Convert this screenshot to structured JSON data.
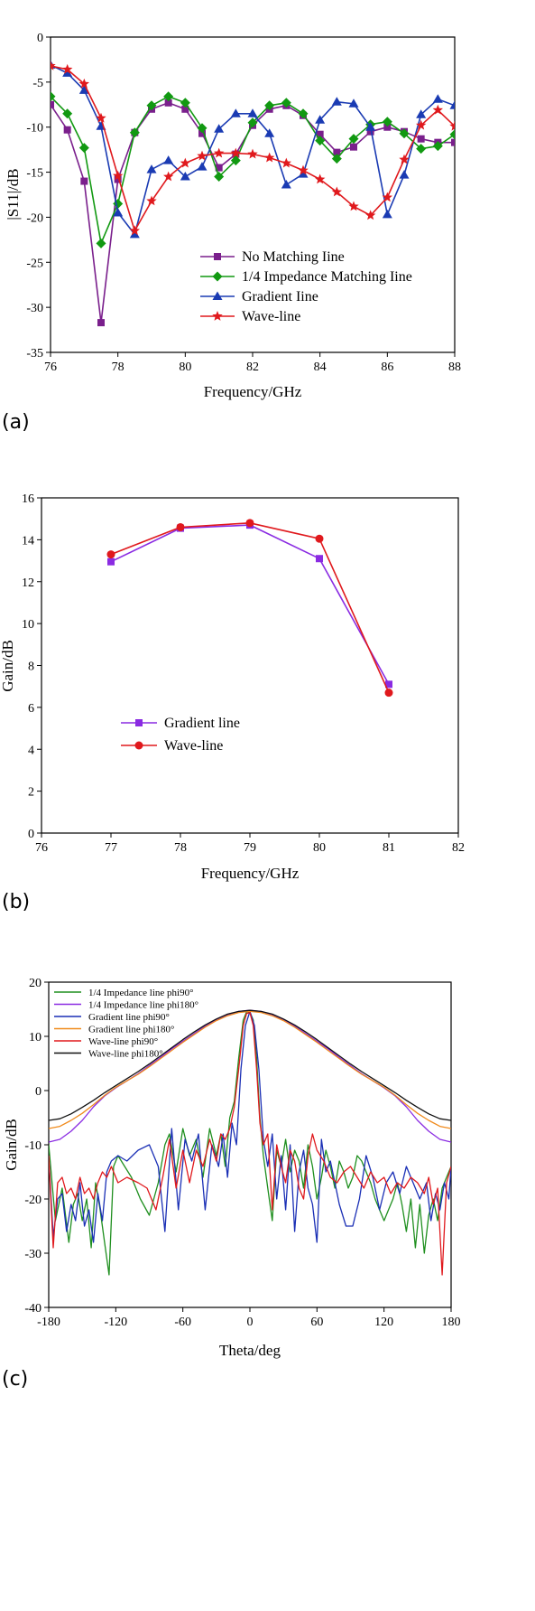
{
  "chart_data": [
    {
      "type": "line",
      "panel_label": "(a)",
      "xlabel": "Frequency/GHz",
      "ylabel": "|S11|/dB",
      "xlim": [
        76,
        88
      ],
      "ylim": [
        -35,
        0
      ],
      "xticks": [
        76,
        78,
        80,
        82,
        84,
        86,
        88
      ],
      "yticks": [
        0,
        -5,
        -10,
        -15,
        -20,
        -25,
        -30,
        -35
      ],
      "legend_position": "bottom-right",
      "series": [
        {
          "name": "No Matching Iine",
          "color": "#7a1f8c",
          "marker": "square",
          "x": [
            76,
            76.5,
            77,
            77.5,
            78,
            78.5,
            79,
            79.5,
            80,
            80.5,
            81,
            81.5,
            82,
            82.5,
            83,
            83.5,
            84,
            84.5,
            85,
            85.5,
            86,
            86.5,
            87,
            87.5,
            88
          ],
          "y": [
            -7.5,
            -10.3,
            -16.0,
            -31.7,
            -15.8,
            -10.6,
            -8.0,
            -7.3,
            -8.0,
            -10.7,
            -14.5,
            -13.0,
            -9.8,
            -8.0,
            -7.6,
            -8.7,
            -10.8,
            -12.8,
            -12.2,
            -10.5,
            -10.0,
            -10.5,
            -11.3,
            -11.7,
            -11.7
          ]
        },
        {
          "name": "1/4 Impedance Matching Iine",
          "color": "#119911",
          "marker": "diamond",
          "x": [
            76,
            76.5,
            77,
            77.5,
            78,
            78.5,
            79,
            79.5,
            80,
            80.5,
            81,
            81.5,
            82,
            82.5,
            83,
            83.5,
            84,
            84.5,
            85,
            85.5,
            86,
            86.5,
            87,
            87.5,
            88
          ],
          "y": [
            -6.6,
            -8.5,
            -12.3,
            -22.9,
            -18.5,
            -10.6,
            -7.6,
            -6.6,
            -7.3,
            -10.1,
            -15.5,
            -13.7,
            -9.5,
            -7.6,
            -7.3,
            -8.5,
            -11.5,
            -13.5,
            -11.3,
            -9.7,
            -9.4,
            -10.7,
            -12.4,
            -12.1,
            -10.8
          ]
        },
        {
          "name": "Gradient Iine",
          "color": "#1a3bb3",
          "marker": "triangle",
          "x": [
            76,
            76.5,
            77,
            77.5,
            78,
            78.5,
            79,
            79.5,
            80,
            80.5,
            81,
            81.5,
            82,
            82.5,
            83,
            83.5,
            84,
            84.5,
            85,
            85.5,
            86,
            86.5,
            87,
            87.5,
            88
          ],
          "y": [
            -3.1,
            -4.0,
            -5.9,
            -9.9,
            -19.5,
            -21.9,
            -14.7,
            -13.7,
            -15.5,
            -14.4,
            -10.2,
            -8.5,
            -8.5,
            -10.7,
            -16.4,
            -15.2,
            -9.2,
            -7.2,
            -7.4,
            -10.0,
            -19.7,
            -15.3,
            -8.6,
            -6.9,
            -7.6
          ]
        },
        {
          "name": "Wave-line",
          "color": "#e0191d",
          "marker": "star",
          "x": [
            76,
            76.5,
            77,
            77.5,
            78,
            78.5,
            79,
            79.5,
            80,
            80.5,
            81,
            81.5,
            82,
            82.5,
            83,
            83.5,
            84,
            84.5,
            85,
            85.5,
            86,
            86.5,
            87,
            87.5,
            88
          ],
          "y": [
            -3.2,
            -3.6,
            -5.2,
            -9.0,
            -15.4,
            -21.5,
            -18.2,
            -15.5,
            -14.0,
            -13.2,
            -12.9,
            -12.9,
            -13.0,
            -13.4,
            -14.0,
            -14.8,
            -15.8,
            -17.2,
            -18.8,
            -19.8,
            -17.8,
            -13.6,
            -9.8,
            -8.1,
            -9.9
          ]
        }
      ]
    },
    {
      "type": "line",
      "panel_label": "(b)",
      "xlabel": "Frequency/GHz",
      "ylabel": "Gain/dB",
      "xlim": [
        76,
        82
      ],
      "ylim": [
        0,
        16
      ],
      "xticks": [
        76,
        77,
        78,
        79,
        80,
        81,
        82
      ],
      "yticks": [
        0,
        2,
        4,
        6,
        8,
        10,
        12,
        14,
        16
      ],
      "legend_position": "bottom-left",
      "series": [
        {
          "name": "Gradient line",
          "color": "#8a2be2",
          "marker": "square",
          "x": [
            77,
            78,
            79,
            80,
            81
          ],
          "y": [
            12.95,
            14.55,
            14.7,
            13.1,
            7.1
          ]
        },
        {
          "name": "Wave-line",
          "color": "#e0191d",
          "marker": "circle",
          "x": [
            77,
            78,
            79,
            80,
            81
          ],
          "y": [
            13.3,
            14.6,
            14.8,
            14.05,
            6.7
          ]
        }
      ]
    },
    {
      "type": "line",
      "panel_label": "(c)",
      "xlabel": "Theta/deg",
      "ylabel": "Gain/dB",
      "xlim": [
        -180,
        180
      ],
      "ylim": [
        -40,
        20
      ],
      "xticks": [
        -180,
        -120,
        -60,
        0,
        60,
        120,
        180
      ],
      "yticks": [
        20,
        10,
        0,
        -10,
        -20,
        -30,
        -40
      ],
      "legend_position": "top-left",
      "series": [
        {
          "name": "1/4 Impedance line phi90°",
          "color": "#1f8f1f",
          "kind": "sidelobe",
          "x": [
            -180,
            -174,
            -168,
            -162,
            -158,
            -154,
            -150,
            -146,
            -142,
            -138,
            -134,
            -130,
            -126,
            -122,
            -118,
            -112,
            -106,
            -98,
            -90,
            -82,
            -76,
            -72,
            -66,
            -60,
            -54,
            -48,
            -42,
            -36,
            -30,
            -26,
            -22,
            -18,
            -14,
            -10,
            -6,
            -3,
            0,
            3,
            6,
            9,
            12,
            16,
            20,
            24,
            28,
            32,
            36,
            40,
            44,
            48,
            52,
            56,
            60,
            64,
            68,
            72,
            76,
            80,
            84,
            88,
            92,
            96,
            100,
            104,
            108,
            112,
            116,
            120,
            124,
            128,
            132,
            136,
            140,
            144,
            148,
            152,
            156,
            160,
            164,
            168,
            172,
            176,
            180
          ],
          "y": [
            -10,
            -24,
            -18,
            -28,
            -21,
            -19,
            -24,
            -20,
            -29,
            -17,
            -22,
            -28,
            -34,
            -14,
            -12,
            -14,
            -16,
            -20,
            -23,
            -17,
            -10,
            -8,
            -15,
            -7,
            -12,
            -9,
            -16,
            -7,
            -12,
            -8,
            -14,
            -5,
            -2,
            6,
            13,
            14.5,
            14.5,
            13,
            6,
            -5,
            -12,
            -18,
            -24,
            -11,
            -14,
            -9,
            -15,
            -11,
            -13,
            -18,
            -10,
            -14,
            -20,
            -16,
            -11,
            -14,
            -18,
            -13,
            -15,
            -18,
            -16,
            -12,
            -13,
            -15,
            -17,
            -20,
            -22,
            -24,
            -22,
            -20,
            -17,
            -21,
            -26,
            -20,
            -29,
            -21,
            -30,
            -23,
            -20,
            -24,
            -18,
            -16,
            -14
          ]
        },
        {
          "name": "1/4 Impedance line phi180°",
          "color": "#8a2be2",
          "kind": "main",
          "x": [
            -180,
            -170,
            -160,
            -150,
            -140,
            -130,
            -120,
            -110,
            -100,
            -90,
            -80,
            -70,
            -60,
            -50,
            -40,
            -30,
            -20,
            -10,
            0,
            10,
            20,
            30,
            40,
            50,
            60,
            70,
            80,
            90,
            100,
            110,
            120,
            130,
            140,
            150,
            160,
            170,
            180
          ],
          "y": [
            -9.5,
            -9,
            -7.5,
            -5.5,
            -3,
            -1,
            0.5,
            1.8,
            3.1,
            4.6,
            6.1,
            7.7,
            9.1,
            10.5,
            11.9,
            13.1,
            14.0,
            14.6,
            14.8,
            14.6,
            14.0,
            13.1,
            11.9,
            10.5,
            9.1,
            7.7,
            6.1,
            4.6,
            3.1,
            1.8,
            0.5,
            -1,
            -3,
            -5.5,
            -7.5,
            -9,
            -9.5
          ]
        },
        {
          "name": "Gradient line phi90°",
          "color": "#1a2fb5",
          "kind": "sidelobe",
          "x": [
            -180,
            -176,
            -172,
            -168,
            -164,
            -160,
            -156,
            -152,
            -148,
            -144,
            -140,
            -136,
            -132,
            -128,
            -124,
            -118,
            -110,
            -100,
            -90,
            -82,
            -76,
            -70,
            -64,
            -58,
            -52,
            -46,
            -40,
            -34,
            -28,
            -24,
            -20,
            -16,
            -12,
            -8,
            -4,
            0,
            4,
            8,
            12,
            16,
            20,
            24,
            28,
            32,
            36,
            40,
            44,
            48,
            52,
            56,
            60,
            64,
            68,
            72,
            76,
            80,
            86,
            92,
            98,
            104,
            110,
            116,
            122,
            128,
            134,
            140,
            146,
            152,
            158,
            162,
            166,
            170,
            174,
            178,
            180
          ],
          "y": [
            -12,
            -27,
            -20,
            -19,
            -26,
            -21,
            -24,
            -17,
            -25,
            -22,
            -28,
            -19,
            -24,
            -15,
            -13,
            -12,
            -13,
            -11,
            -10,
            -14,
            -26,
            -7,
            -22,
            -9,
            -13,
            -8,
            -22,
            -10,
            -14,
            -8,
            -16,
            -6,
            -10,
            4,
            12,
            14.6,
            12,
            4,
            -9,
            -14,
            -8,
            -20,
            -12,
            -22,
            -10,
            -26,
            -15,
            -11,
            -18,
            -21,
            -28,
            -9,
            -15,
            -13,
            -17,
            -21,
            -25,
            -25,
            -20,
            -12,
            -16,
            -22,
            -17,
            -15,
            -19,
            -14,
            -17,
            -20,
            -17,
            -24,
            -19,
            -22,
            -17,
            -20,
            -14
          ]
        },
        {
          "name": "Gradient line phi180°",
          "color": "#f08a1c",
          "kind": "main",
          "x": [
            -180,
            -170,
            -160,
            -150,
            -140,
            -130,
            -120,
            -110,
            -100,
            -90,
            -80,
            -70,
            -60,
            -50,
            -40,
            -30,
            -20,
            -10,
            0,
            10,
            20,
            30,
            40,
            50,
            60,
            70,
            80,
            90,
            100,
            110,
            120,
            130,
            140,
            150,
            160,
            170,
            180
          ],
          "y": [
            -7,
            -6.6,
            -5.5,
            -4.2,
            -2.6,
            -0.9,
            0.6,
            1.8,
            3.0,
            4.4,
            5.9,
            7.4,
            8.9,
            10.3,
            11.7,
            12.9,
            13.8,
            14.4,
            14.6,
            14.4,
            13.8,
            12.9,
            11.7,
            10.3,
            8.9,
            7.4,
            5.9,
            4.4,
            3.0,
            1.8,
            0.6,
            -0.9,
            -2.6,
            -4.2,
            -5.5,
            -6.6,
            -7
          ]
        },
        {
          "name": "Wave-line phi90°",
          "color": "#e0191d",
          "kind": "sidelobe",
          "x": [
            -180,
            -176,
            -172,
            -168,
            -164,
            -160,
            -156,
            -152,
            -148,
            -144,
            -140,
            -136,
            -132,
            -128,
            -124,
            -118,
            -110,
            -100,
            -92,
            -84,
            -78,
            -72,
            -66,
            -60,
            -54,
            -48,
            -42,
            -36,
            -30,
            -26,
            -22,
            -18,
            -14,
            -10,
            -6,
            -3,
            0,
            3,
            6,
            9,
            12,
            16,
            20,
            24,
            28,
            32,
            36,
            40,
            44,
            48,
            52,
            56,
            60,
            66,
            72,
            78,
            84,
            90,
            96,
            102,
            108,
            114,
            120,
            126,
            132,
            138,
            144,
            150,
            156,
            160,
            164,
            168,
            172,
            176,
            180
          ],
          "y": [
            -12,
            -29,
            -17,
            -16,
            -19,
            -18,
            -20,
            -16,
            -19,
            -18,
            -20,
            -17,
            -15,
            -16,
            -14,
            -17,
            -16,
            -17,
            -18,
            -22,
            -16,
            -9,
            -18,
            -11,
            -17,
            -11,
            -14,
            -9,
            -13,
            -8,
            -9,
            -7,
            -3,
            4,
            12,
            14.2,
            14.4,
            12,
            4,
            -6,
            -10,
            -8,
            -22,
            -10,
            -14,
            -17,
            -11,
            -13,
            -18,
            -20,
            -12,
            -8,
            -11,
            -13,
            -16,
            -17,
            -15,
            -14,
            -16,
            -18,
            -15,
            -17,
            -16,
            -19,
            -17,
            -18,
            -16,
            -17,
            -19,
            -16,
            -21,
            -18,
            -34,
            -17,
            -14
          ]
        },
        {
          "name": "Wave-line phi180°",
          "color": "#111111",
          "kind": "main",
          "x": [
            -180,
            -170,
            -160,
            -150,
            -140,
            -130,
            -120,
            -110,
            -100,
            -90,
            -80,
            -70,
            -60,
            -50,
            -40,
            -30,
            -20,
            -10,
            0,
            10,
            20,
            30,
            40,
            50,
            60,
            70,
            80,
            90,
            100,
            110,
            120,
            130,
            140,
            150,
            160,
            170,
            180
          ],
          "y": [
            -5.5,
            -5.2,
            -4.3,
            -3.1,
            -1.8,
            -0.4,
            0.9,
            2.2,
            3.5,
            4.9,
            6.4,
            7.9,
            9.4,
            10.8,
            12.1,
            13.2,
            14.1,
            14.6,
            14.8,
            14.6,
            14.1,
            13.2,
            12.1,
            10.8,
            9.4,
            7.9,
            6.4,
            4.9,
            3.5,
            2.2,
            0.9,
            -0.4,
            -1.8,
            -3.1,
            -4.3,
            -5.2,
            -5.5
          ]
        }
      ]
    }
  ]
}
